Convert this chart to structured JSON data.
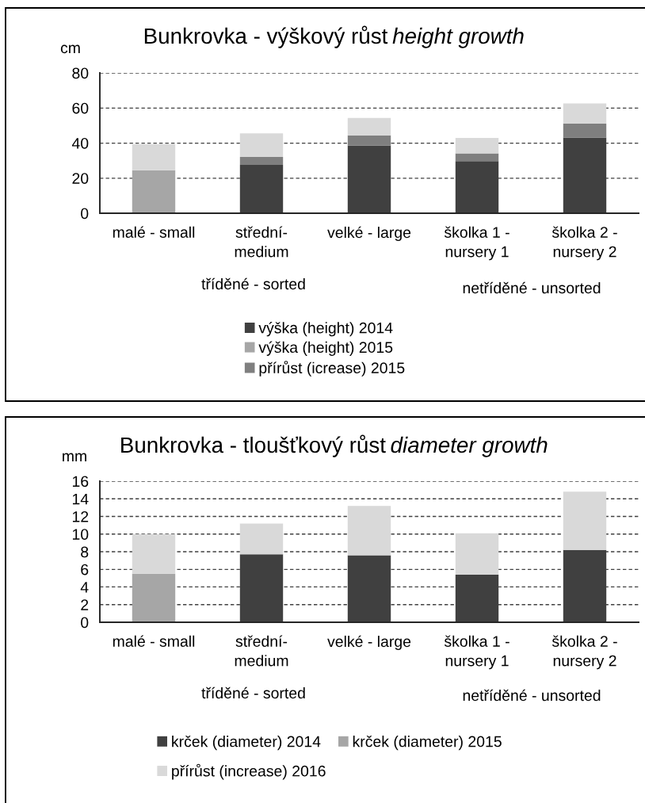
{
  "chart_data": [
    {
      "type": "bar",
      "stacked": true,
      "title": "Bunkrovka - výškový růst",
      "subtitle": "height growth",
      "ylabel": "cm",
      "categories": [
        "malé - small",
        "střední-\nmedium",
        "velké - large",
        "školka 1 -\nnursery 1",
        "školka 2 -\nnursery 2"
      ],
      "series": [
        {
          "name": "výška (height) 2014",
          "color": "#404040",
          "values": [
            null,
            27.6,
            38.6,
            29.7,
            43.2
          ]
        },
        {
          "name": "výška (height) 2015",
          "color": "#a6a6a6",
          "values": [
            24.5,
            null,
            null,
            null,
            null
          ]
        },
        {
          "name": "přírůst (icrease) 2015",
          "color": "#7f7f7f",
          "values": [
            null,
            4.5,
            5.8,
            4.4,
            7.9
          ]
        },
        {
          "color": "#d9d9d9",
          "values": [
            14.8,
            13.4,
            10.0,
            8.8,
            11.5
          ]
        }
      ],
      "ylim": [
        0,
        80
      ],
      "yticks": [
        0,
        20,
        40,
        60,
        80
      ],
      "grid": "y",
      "legend": "bottom",
      "annotations": [
        "tříděné - sorted",
        "netříděné - unsorted"
      ]
    },
    {
      "type": "bar",
      "stacked": true,
      "title": "Bunkrovka - tloušťkový růst",
      "subtitle": "diameter growth",
      "ylabel": "mm",
      "categories": [
        "malé - small",
        "střední-\nmedium",
        "velké - large",
        "školka 1 -\nnursery 1",
        "školka 2 -\nnursery 2"
      ],
      "series": [
        {
          "name": "krček (diameter) 2014",
          "color": "#404040",
          "values": [
            null,
            7.7,
            7.6,
            5.4,
            8.2
          ]
        },
        {
          "name": "krček (diameter) 2015",
          "color": "#a6a6a6",
          "values": [
            5.5,
            null,
            null,
            null,
            null
          ]
        },
        {
          "name": "přírůst (increase) 2016",
          "color": "#d9d9d9",
          "values": [
            4.5,
            3.5,
            5.6,
            4.7,
            6.6
          ]
        }
      ],
      "ylim": [
        0,
        16
      ],
      "yticks": [
        0,
        2,
        4,
        6,
        8,
        10,
        12,
        14,
        16
      ],
      "grid": "y",
      "legend": "bottom",
      "annotations": [
        "tříděné - sorted",
        "netříděné - unsorted"
      ]
    }
  ]
}
